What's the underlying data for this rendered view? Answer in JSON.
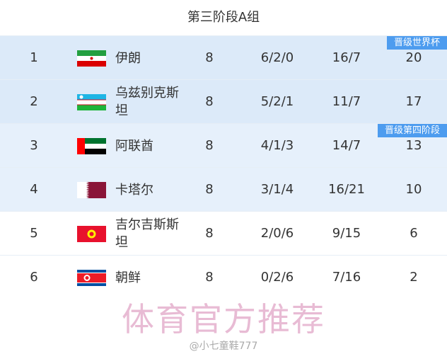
{
  "title": "第三阶段A组",
  "rows": [
    {
      "rank": "1",
      "team": "伊朗",
      "flag": "iran-flag",
      "played": "8",
      "wdl": "6/2/0",
      "goals": "16/7",
      "points": "20",
      "badge": "晋级世界杯"
    },
    {
      "rank": "2",
      "team": "乌兹别克斯坦",
      "flag": "uzbekistan-flag",
      "played": "8",
      "wdl": "5/2/1",
      "goals": "11/7",
      "points": "17"
    },
    {
      "rank": "3",
      "team": "阿联酋",
      "flag": "uae-flag",
      "played": "8",
      "wdl": "4/1/3",
      "goals": "14/7",
      "points": "13",
      "badge": "晋级第四阶段"
    },
    {
      "rank": "4",
      "team": "卡塔尔",
      "flag": "qatar-flag",
      "played": "8",
      "wdl": "3/1/4",
      "goals": "16/21",
      "points": "10"
    },
    {
      "rank": "5",
      "team": "吉尔吉斯斯坦",
      "flag": "kyrgyzstan-flag",
      "played": "8",
      "wdl": "2/0/6",
      "goals": "9/15",
      "points": "6"
    },
    {
      "rank": "6",
      "team": "朝鲜",
      "flag": "north-korea-flag",
      "played": "8",
      "wdl": "0/2/6",
      "goals": "7/16",
      "points": "2"
    }
  ],
  "watermark": "体育官方推荐",
  "credit": "@小七童鞋777",
  "colors": {
    "badge": "#4d9cef",
    "qualified_row": "#dceaf9"
  }
}
